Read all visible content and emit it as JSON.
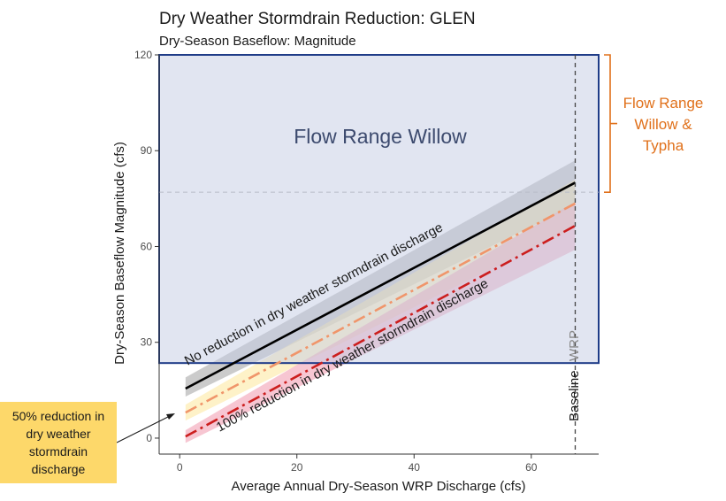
{
  "chart_data": {
    "type": "line",
    "title": "Dry Weather Stormdrain Reduction: GLEN",
    "subtitle": "Dry-Season Baseflow: Magnitude",
    "xlabel": "Average Annual Dry-Season WRP Discharge (cfs)",
    "ylabel": "Dry-Season Baseflow Magnitude (cfs)",
    "xlim": [
      -3.5,
      71.5
    ],
    "ylim": [
      -5,
      120
    ],
    "x_ticks": [
      "0",
      "20",
      "40",
      "60"
    ],
    "x_tick_values": [
      0,
      20,
      40,
      60
    ],
    "y_ticks": [
      "0",
      "30",
      "60",
      "90",
      "120"
    ],
    "y_tick_values": [
      0,
      30,
      60,
      90,
      120
    ],
    "grid": false,
    "series": [
      {
        "key": "none",
        "color": "#000000",
        "dash": "solid",
        "band_color": "#a8a8a8",
        "points": [
          [
            1,
            15.5
          ],
          [
            67.5,
            80
          ]
        ],
        "band": [
          [
            1,
            13,
            19
          ],
          [
            67.5,
            73,
            87
          ]
        ]
      },
      {
        "key": "fifty",
        "color": "#f0956a",
        "dash": "dashdot",
        "band_color": "#fde9a4",
        "points": [
          [
            1,
            8
          ],
          [
            67.5,
            73.5
          ]
        ],
        "band": [
          [
            1,
            5.5,
            10.5
          ],
          [
            67.5,
            66,
            81
          ]
        ]
      },
      {
        "key": "hundred",
        "color": "#cc1e1e",
        "dash": "dashdot",
        "band_color": "#f2a0b4",
        "points": [
          [
            1,
            0.5
          ],
          [
            67.5,
            66.5
          ]
        ],
        "band": [
          [
            1,
            -1.5,
            2.5
          ],
          [
            67.5,
            59,
            74
          ]
        ]
      }
    ],
    "annotations": {
      "no_reduction": "No reduction in dry weather stormdrain discharge",
      "hundred_reduction": "100% reduction in dry weather stormdrain discharge",
      "fifty_reduction": "50% reduction in dry weather stormdrain discharge",
      "flow_range_willow": "Flow Range Willow",
      "flow_range_willow_typha": [
        "Flow Range",
        "Willow &",
        "Typha"
      ],
      "baseline": "Baseline",
      "wrp": "WRP"
    },
    "willow_range": {
      "y_min": 23.5,
      "y_max": 120
    },
    "willow_typha_lower": 77,
    "baseline_x": 67.5,
    "colors": {
      "willow_fill": "#c3cbe3",
      "willow_border": "#1f3c88",
      "willow_text": "#3c4a6e",
      "typha_bracket": "#e0701a",
      "callout_bg": "#fdd86a"
    }
  }
}
